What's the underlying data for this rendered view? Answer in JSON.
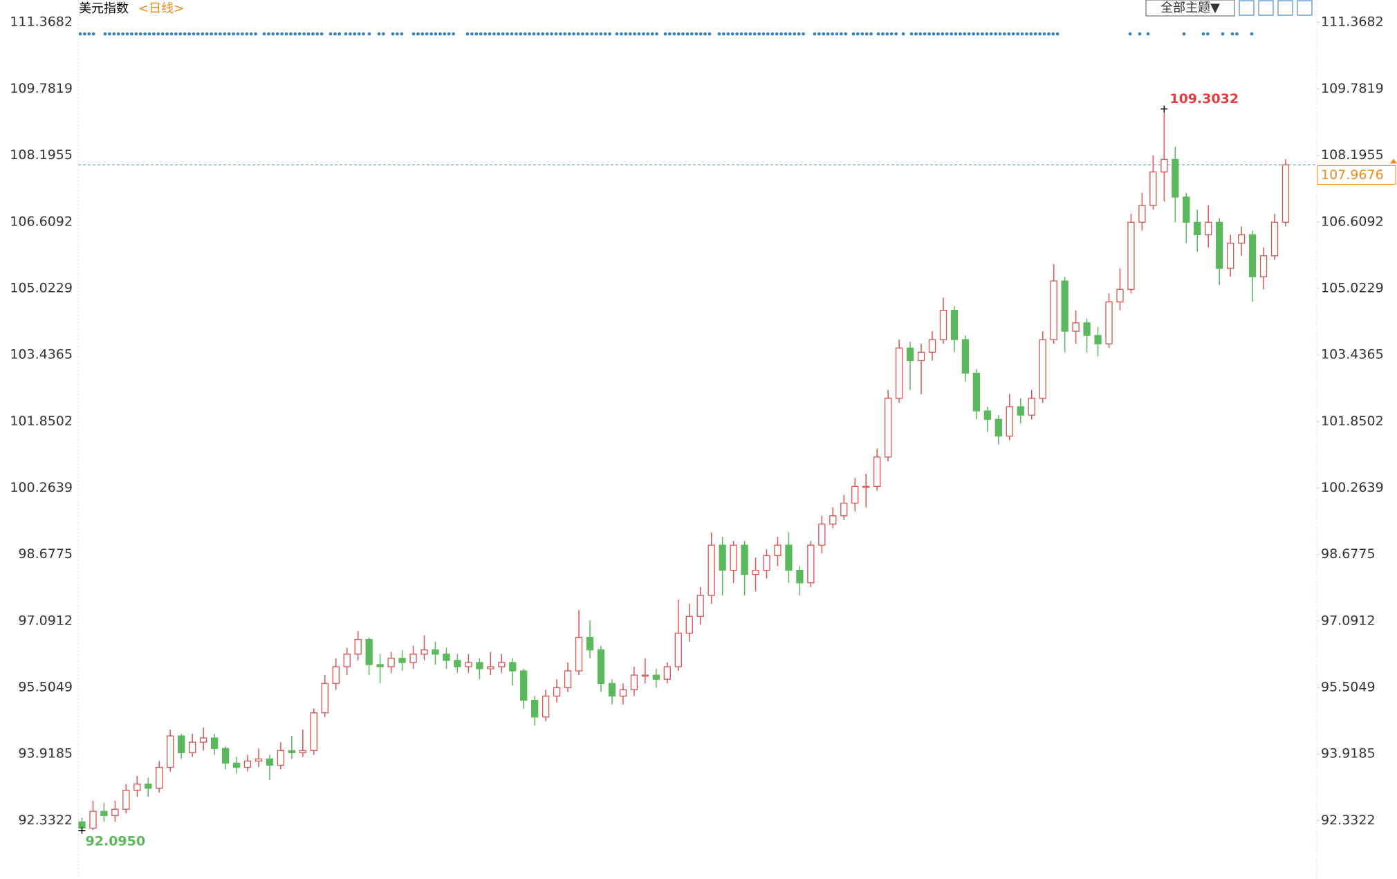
{
  "chart_data": {
    "type": "candlestick",
    "title": "美元指数",
    "subtitle": "<日线>",
    "theme_button": "全部主题▼",
    "up_color": "#d9534f",
    "down_color": "#5cb85c",
    "ylim": [
      90.97,
      111.9
    ],
    "yticks": [
      92.3322,
      93.9185,
      95.5049,
      97.0912,
      98.6775,
      100.2639,
      101.8502,
      103.4365,
      105.0229,
      106.6092,
      108.1955,
      109.7819,
      111.3682
    ],
    "high_label": 109.3032,
    "high_index": 98,
    "low_label": {
      "value": 92.095,
      "label": "92.0950"
    },
    "low_index": 0,
    "current_price": 107.9676,
    "open": [
      92.3,
      92.15,
      92.55,
      92.45,
      92.6,
      93.05,
      93.2,
      93.1,
      93.6,
      94.35,
      93.95,
      94.2,
      94.3,
      94.05,
      93.7,
      93.6,
      93.75,
      93.8,
      93.65,
      94.0,
      93.95,
      94.0,
      94.9,
      95.6,
      96.0,
      96.3,
      96.65,
      96.05,
      96.0,
      96.2,
      96.1,
      96.3,
      96.4,
      96.3,
      96.15,
      96.0,
      96.1,
      95.95,
      96.0,
      96.1,
      95.9,
      95.2,
      94.8,
      95.3,
      95.5,
      95.9,
      96.7,
      96.4,
      95.6,
      95.3,
      95.45,
      95.8,
      95.8,
      95.7,
      96.0,
      96.8,
      97.2,
      97.7,
      98.9,
      98.3,
      98.9,
      98.2,
      98.3,
      98.65,
      98.9,
      98.3,
      98.0,
      98.9,
      99.4,
      99.6,
      99.9,
      100.3,
      100.3,
      101.0,
      102.4,
      103.6,
      103.3,
      103.5,
      103.8,
      104.5,
      103.8,
      103.0,
      102.1,
      101.9,
      101.5,
      102.2,
      102.0,
      102.4,
      103.8,
      105.2,
      104.0,
      104.2,
      103.9,
      103.7,
      104.7,
      105.0,
      106.6,
      107.0,
      107.8,
      108.1,
      107.2,
      106.6,
      106.3,
      106.6,
      105.5,
      106.1,
      106.3,
      105.3,
      105.8,
      106.6
    ],
    "high": [
      92.4,
      92.8,
      92.75,
      92.8,
      93.2,
      93.4,
      93.35,
      93.75,
      94.5,
      94.4,
      94.4,
      94.55,
      94.4,
      94.1,
      93.85,
      93.9,
      94.05,
      93.9,
      94.2,
      94.35,
      94.5,
      95.0,
      95.8,
      96.2,
      96.45,
      96.85,
      96.7,
      96.3,
      96.35,
      96.4,
      96.5,
      96.75,
      96.6,
      96.45,
      96.3,
      96.3,
      96.2,
      96.35,
      96.3,
      96.2,
      95.95,
      95.3,
      95.45,
      95.7,
      96.1,
      97.35,
      97.1,
      96.5,
      95.7,
      95.6,
      96.0,
      96.2,
      95.95,
      96.1,
      97.6,
      97.5,
      97.9,
      99.2,
      99.1,
      99.0,
      99.0,
      98.6,
      98.8,
      99.1,
      99.2,
      98.4,
      99.0,
      99.6,
      99.8,
      100.1,
      100.5,
      100.6,
      101.2,
      102.6,
      103.8,
      103.75,
      103.7,
      104.0,
      104.8,
      104.6,
      103.9,
      103.1,
      102.2,
      102.0,
      102.5,
      102.4,
      102.6,
      104.0,
      105.6,
      105.3,
      104.5,
      104.3,
      104.1,
      104.9,
      105.5,
      106.8,
      107.3,
      108.2,
      109.3032,
      108.4,
      107.3,
      106.9,
      107.0,
      106.7,
      106.3,
      106.5,
      106.4,
      106.0,
      106.8,
      108.1
    ],
    "low": [
      92.095,
      92.1,
      92.3,
      92.3,
      92.5,
      92.9,
      92.9,
      93.0,
      93.5,
      93.8,
      93.85,
      94.0,
      93.9,
      93.55,
      93.45,
      93.5,
      93.6,
      93.3,
      93.55,
      93.8,
      93.85,
      93.9,
      94.8,
      95.45,
      95.8,
      96.15,
      95.8,
      95.6,
      95.85,
      95.9,
      95.95,
      96.15,
      96.05,
      95.95,
      95.85,
      95.85,
      95.7,
      95.8,
      95.85,
      95.55,
      95.0,
      94.6,
      94.7,
      95.15,
      95.4,
      95.8,
      96.2,
      95.4,
      95.1,
      95.1,
      95.3,
      95.6,
      95.5,
      95.6,
      95.9,
      96.6,
      97.0,
      97.5,
      97.7,
      98.0,
      97.7,
      97.8,
      98.1,
      98.4,
      98.0,
      97.7,
      97.9,
      98.7,
      99.3,
      99.5,
      99.7,
      99.8,
      100.2,
      100.9,
      102.3,
      102.6,
      102.5,
      103.3,
      103.7,
      103.5,
      102.8,
      101.9,
      101.6,
      101.3,
      101.4,
      101.8,
      101.9,
      102.3,
      103.7,
      103.5,
      103.7,
      103.5,
      103.4,
      103.6,
      104.5,
      104.9,
      106.4,
      106.9,
      107.1,
      106.6,
      106.1,
      105.9,
      106.0,
      105.1,
      105.3,
      105.8,
      104.7,
      105.0,
      105.7,
      106.5
    ],
    "close": [
      92.15,
      92.55,
      92.45,
      92.6,
      93.05,
      93.2,
      93.1,
      93.6,
      94.35,
      93.95,
      94.2,
      94.3,
      94.05,
      93.7,
      93.6,
      93.75,
      93.8,
      93.65,
      94.0,
      93.95,
      94.0,
      94.9,
      95.6,
      96.0,
      96.3,
      96.65,
      96.05,
      96.0,
      96.2,
      96.1,
      96.3,
      96.4,
      96.3,
      96.15,
      96.0,
      96.1,
      95.95,
      96.0,
      96.1,
      95.9,
      95.2,
      94.8,
      95.3,
      95.5,
      95.9,
      96.7,
      96.4,
      95.6,
      95.3,
      95.45,
      95.8,
      95.8,
      95.7,
      96.0,
      96.8,
      97.2,
      97.7,
      98.9,
      98.3,
      98.9,
      98.2,
      98.3,
      98.65,
      98.9,
      98.3,
      98.0,
      98.9,
      99.4,
      99.6,
      99.9,
      100.3,
      100.3,
      101.0,
      102.4,
      103.6,
      103.3,
      103.5,
      103.8,
      104.5,
      103.8,
      103.0,
      102.1,
      101.9,
      101.5,
      102.2,
      102.0,
      102.4,
      103.8,
      105.2,
      104.0,
      104.2,
      103.9,
      103.7,
      104.7,
      105.0,
      106.6,
      107.0,
      107.8,
      108.1,
      107.2,
      106.6,
      106.3,
      106.6,
      105.5,
      106.1,
      106.3,
      105.3,
      105.8,
      106.6,
      107.9676
    ]
  }
}
